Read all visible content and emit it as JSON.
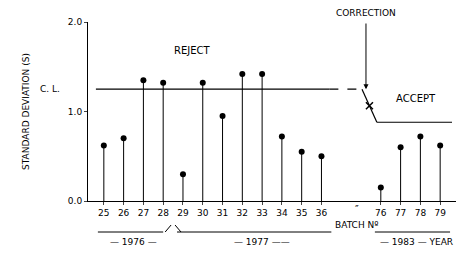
{
  "chart_data": {
    "type": "lollipop",
    "categories": [
      "25",
      "26",
      "27",
      "28",
      "29",
      "30",
      "31",
      "32",
      "33",
      "34",
      "35",
      "36",
      "76",
      "77",
      "78",
      "79"
    ],
    "values": [
      0.62,
      0.7,
      1.35,
      1.32,
      0.3,
      1.32,
      0.95,
      1.42,
      1.42,
      0.72,
      0.55,
      0.5,
      0.15,
      0.6,
      0.72,
      0.62
    ],
    "color": "#000000",
    "ylabel": "STANDARD DEVIATION (S)",
    "ylim": [
      0.0,
      2.0
    ],
    "yticks": [
      {
        "value": 0.0,
        "label": "0.0"
      },
      {
        "value": 1.0,
        "label": "1.0"
      },
      {
        "value": 2.0,
        "label": "2.0"
      }
    ],
    "grid": false,
    "control_limit": 1.25,
    "new_control_limit": 0.88,
    "cl_label": "C. L.",
    "correction_label": "CORRECTION",
    "reject_label": "REJECT",
    "accept_label": "ACCEPT",
    "batch_label": "BATCH Nº",
    "axis_break_label": "″",
    "year_labels": [
      "— 1976 —",
      "— 1977 ——",
      "— 1983 — YEAR"
    ]
  }
}
